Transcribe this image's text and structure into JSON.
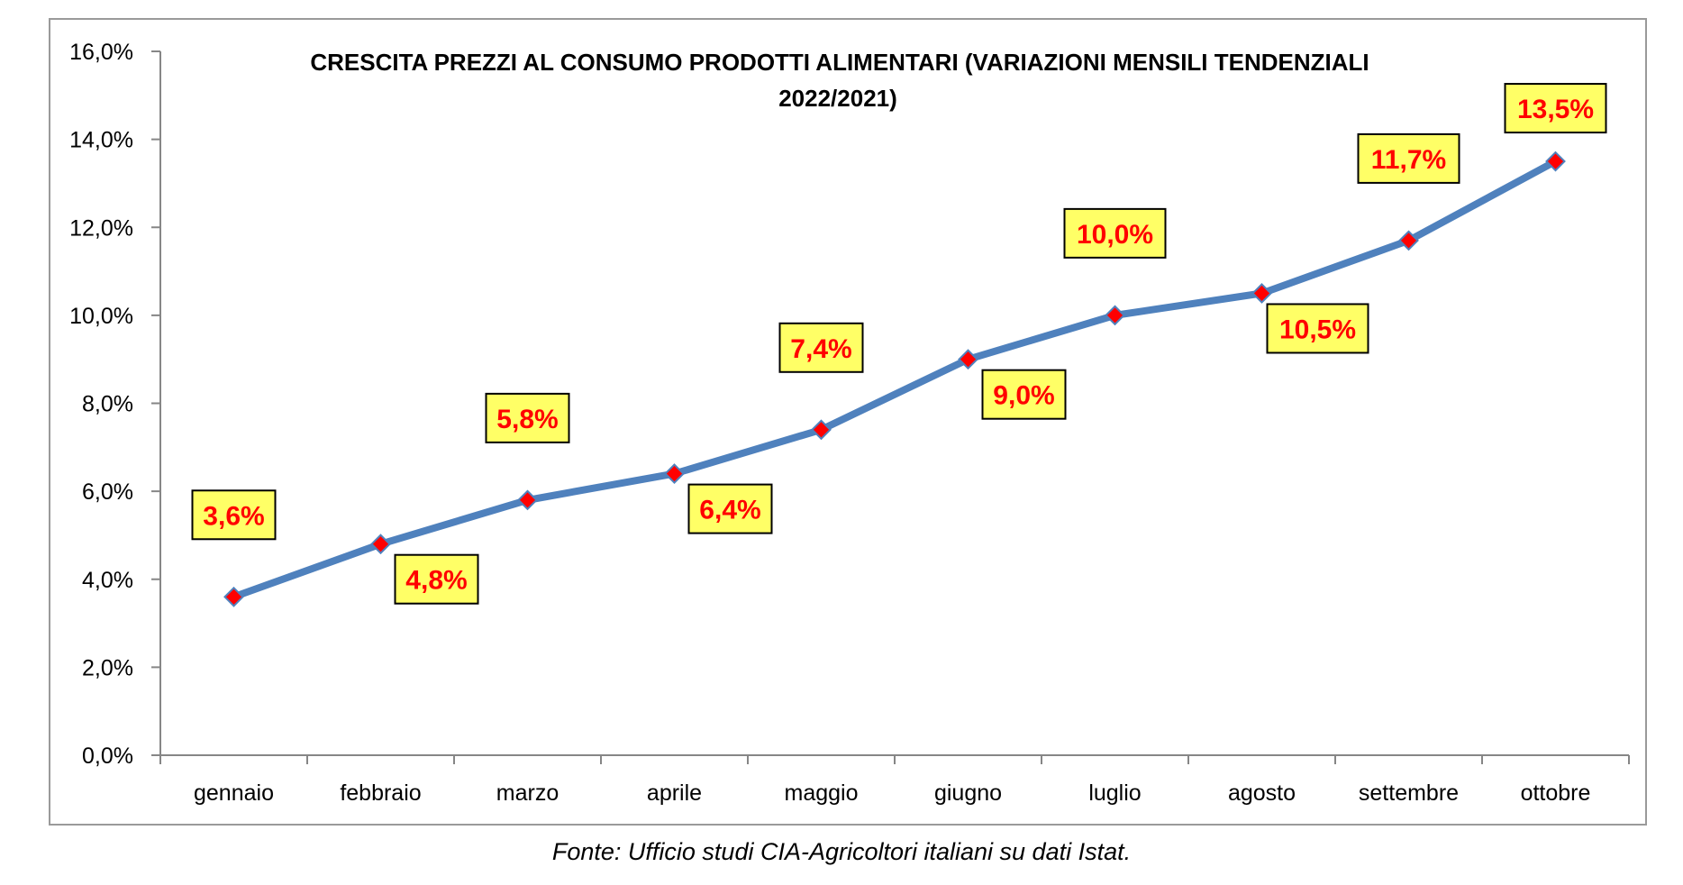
{
  "chart_data": {
    "type": "line",
    "title_lines": [
      "CRESCITA PREZZI AL CONSUMO PRODOTTI ALIMENTARI (VARIAZIONI MENSILI TENDENZIALI",
      "2022/2021)"
    ],
    "categories": [
      "gennaio",
      "febbraio",
      "marzo",
      "aprile",
      "maggio",
      "giugno",
      "luglio",
      "agosto",
      "settembre",
      "ottobre"
    ],
    "series": [
      {
        "values": [
          3.6,
          4.8,
          5.8,
          6.4,
          7.4,
          9.0,
          10.0,
          10.5,
          11.7,
          13.5
        ],
        "labels": [
          "3,6%",
          "4,8%",
          "5,8%",
          "6,4%",
          "7,4%",
          "9,0%",
          "10,0%",
          "10,5%",
          "11,7%",
          "13,5%"
        ],
        "label_positions": [
          "above",
          "below",
          "above",
          "below",
          "above",
          "below",
          "above",
          "below",
          "above",
          "above"
        ],
        "line_color": "#4f81bd",
        "marker_color": "#ff0000",
        "label_bg": "#ffff66"
      }
    ],
    "ylim": [
      0,
      16
    ],
    "y_ticks": [
      0,
      2,
      4,
      6,
      8,
      10,
      12,
      14,
      16
    ],
    "y_tick_labels": [
      "0,0%",
      "2,0%",
      "4,0%",
      "6,0%",
      "8,0%",
      "10,0%",
      "12,0%",
      "14,0%",
      "16,0%"
    ],
    "xlabel": "",
    "ylabel": "",
    "grid": false,
    "legend": "none"
  },
  "caption": "Fonte: Ufficio studi CIA-Agricoltori italiani su dati Istat."
}
